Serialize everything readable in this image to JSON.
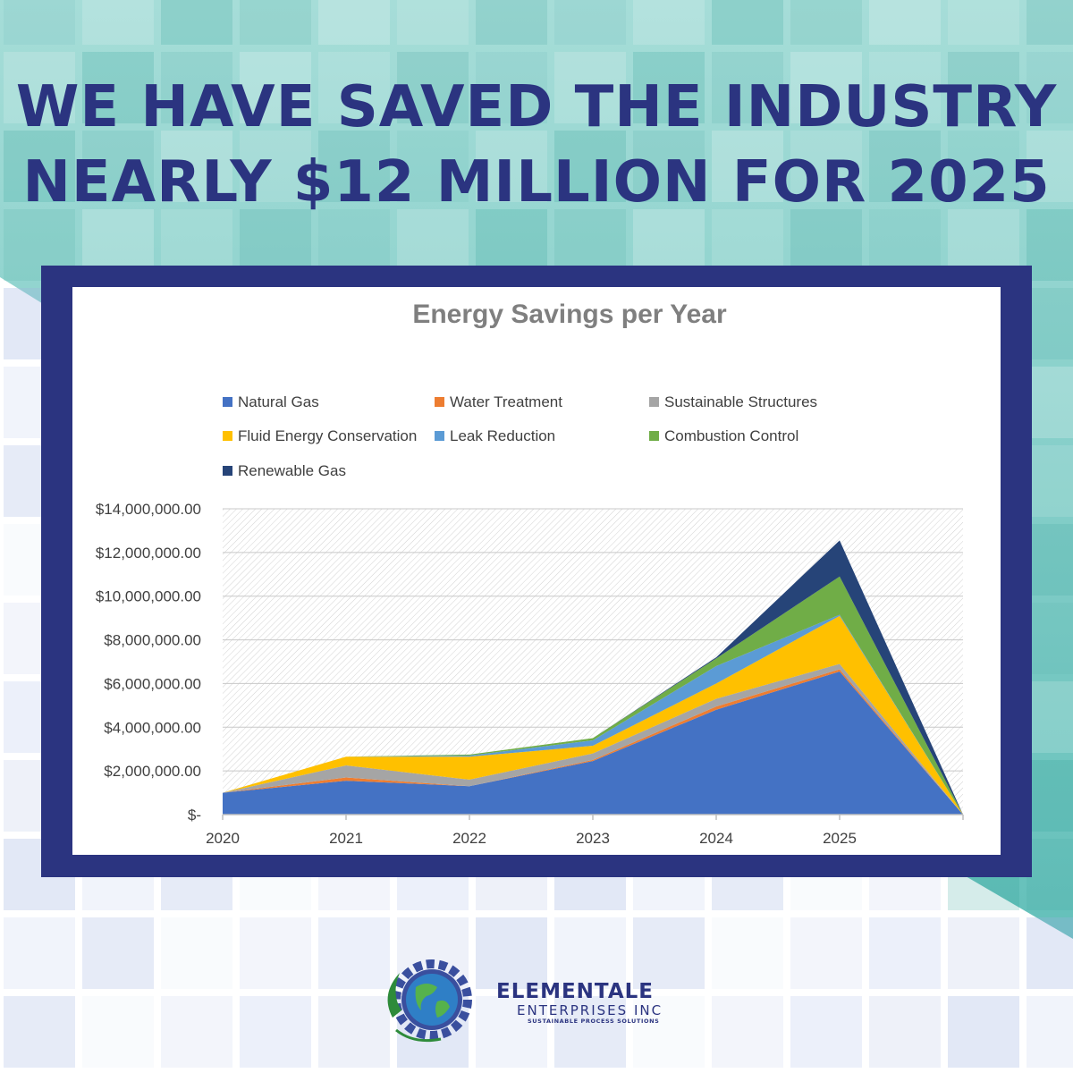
{
  "headline": {
    "line1": "WE HAVE SAVED THE INDUSTRY",
    "line2": "NEARLY $12 MILLION FOR 2025"
  },
  "colors": {
    "navy": "#2b3480",
    "teal": "#5fbfb8"
  },
  "chart_data": {
    "type": "area",
    "stacked": true,
    "title": "Energy Savings per Year",
    "xlabel": "",
    "ylabel": "",
    "x": [
      "2020",
      "2021",
      "2022",
      "2023",
      "2024",
      "2025",
      ""
    ],
    "ylim": [
      0,
      14000000
    ],
    "y_ticks": [
      {
        "value": 0,
        "label": "$-"
      },
      {
        "value": 2000000,
        "label": "$2,000,000.00"
      },
      {
        "value": 4000000,
        "label": "$4,000,000.00"
      },
      {
        "value": 6000000,
        "label": "$6,000,000.00"
      },
      {
        "value": 8000000,
        "label": "$8,000,000.00"
      },
      {
        "value": 10000000,
        "label": "$10,000,000.00"
      },
      {
        "value": 12000000,
        "label": "$12,000,000.00"
      },
      {
        "value": 14000000,
        "label": "$14,000,000.00"
      }
    ],
    "grid": true,
    "legend_position": "top",
    "series": [
      {
        "name": "Natural Gas",
        "color": "#4472c4",
        "values": [
          1000000,
          1550000,
          1300000,
          2450000,
          4800000,
          6550000,
          0
        ]
      },
      {
        "name": "Water Treatment",
        "color": "#ed7d31",
        "values": [
          0,
          150000,
          0,
          50000,
          150000,
          100000,
          0
        ]
      },
      {
        "name": "Sustainable Structures",
        "color": "#a5a5a5",
        "values": [
          0,
          550000,
          300000,
          300000,
          350000,
          250000,
          0
        ]
      },
      {
        "name": "Fluid Energy Conservation",
        "color": "#ffc000",
        "values": [
          0,
          400000,
          1050000,
          350000,
          700000,
          2200000,
          0
        ]
      },
      {
        "name": "Leak Reduction",
        "color": "#5b9bd5",
        "values": [
          0,
          0,
          50000,
          250000,
          800000,
          50000,
          0
        ]
      },
      {
        "name": "Combustion Control",
        "color": "#70ad47",
        "values": [
          0,
          0,
          50000,
          100000,
          350000,
          1750000,
          0
        ]
      },
      {
        "name": "Renewable Gas",
        "color": "#264478",
        "values": [
          0,
          0,
          0,
          0,
          50000,
          1650000,
          0
        ]
      }
    ]
  },
  "logo": {
    "name": "ELEMENTALE",
    "sub": "ENTERPRISES INC",
    "tagline": "SUSTAINABLE PROCESS SOLUTIONS",
    "icon": "globe-gear-icon"
  }
}
